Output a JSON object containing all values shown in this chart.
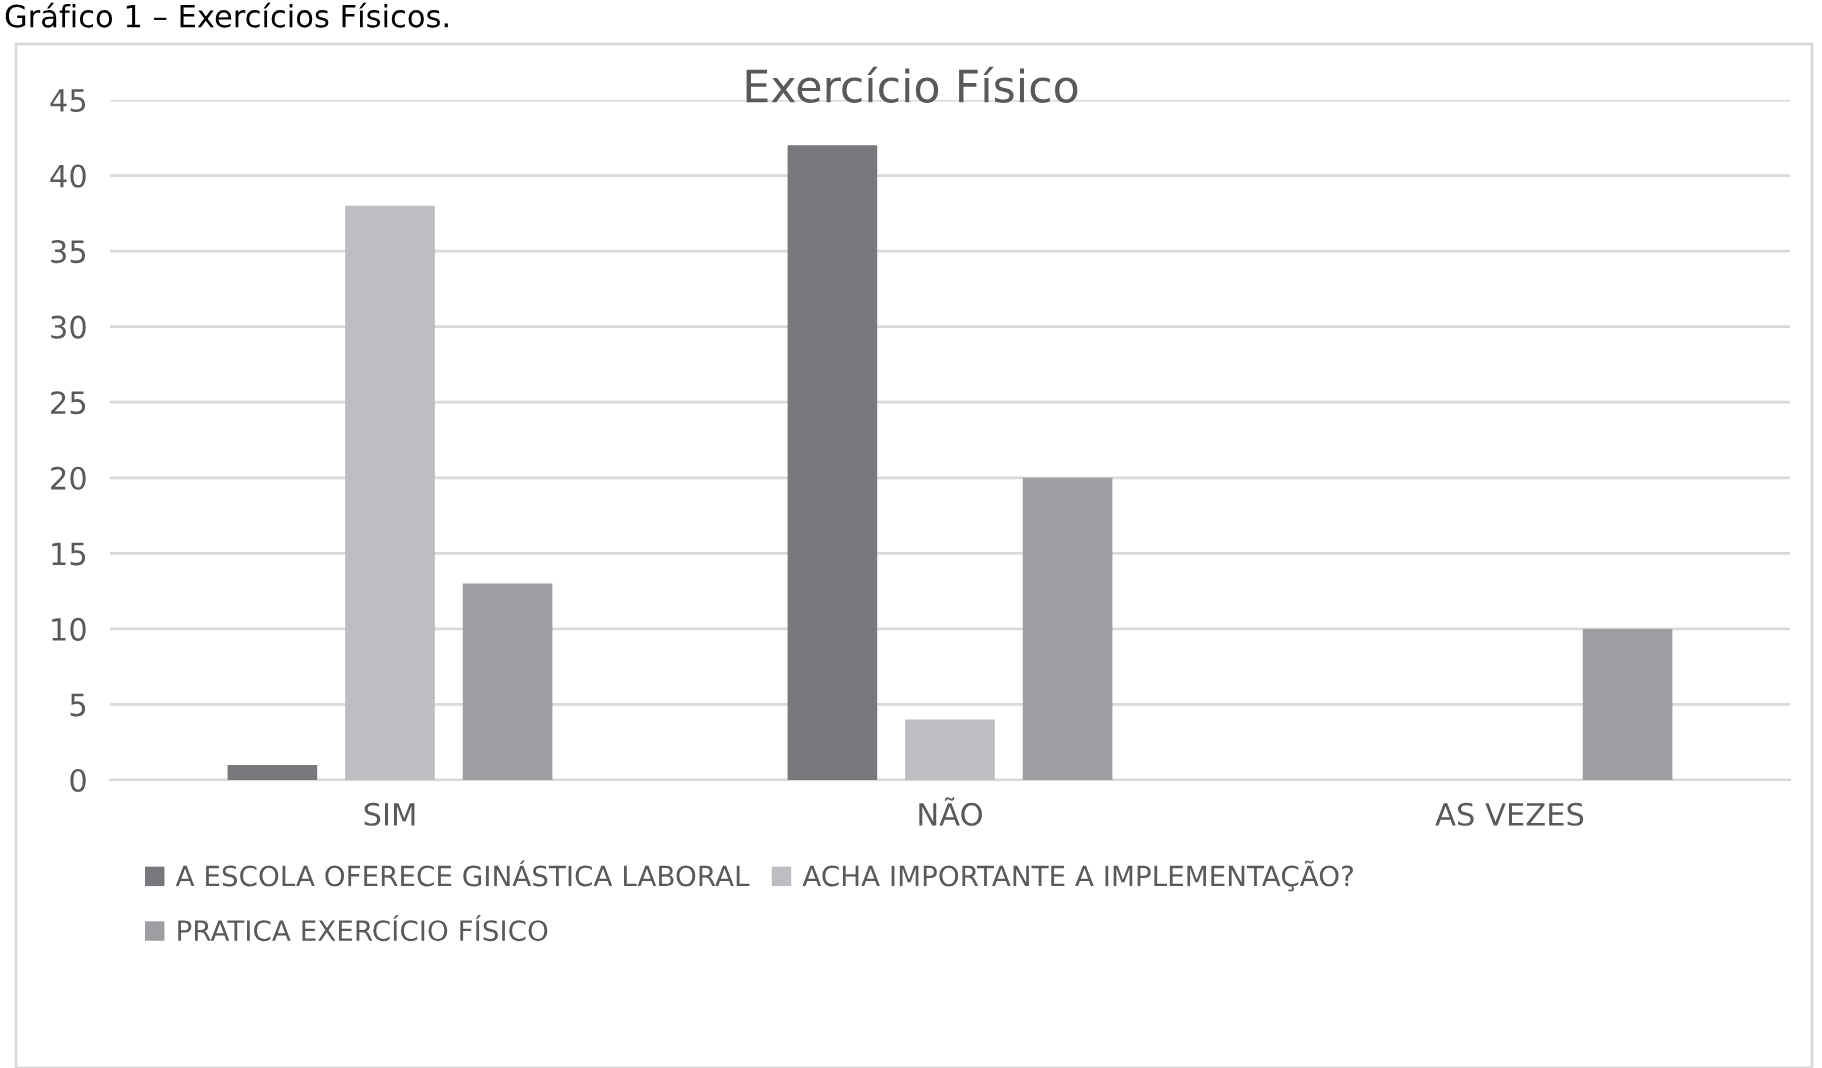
{
  "chart_data": {
    "type": "bar",
    "title": "Exercício Físico",
    "annotations": [
      "Gráfico 1 – Exercícios Físicos."
    ],
    "categories": [
      "SIM",
      "NÃO",
      "AS VEZES"
    ],
    "series": [
      {
        "name": "A ESCOLA OFERECE GINÁSTICA LABORAL",
        "color": "#77787b",
        "values": [
          1,
          42,
          0
        ]
      },
      {
        "name": "ACHA IMPORTANTE A IMPLEMENTAÇÃO?",
        "color": "#bcbdc0",
        "values": [
          38,
          4,
          0
        ]
      },
      {
        "name": "PRATICA EXERCÍCIO FÍSICO",
        "color": "#9d9ea1",
        "values": [
          13,
          20,
          10
        ]
      }
    ],
    "ylim": [
      0,
      45
    ],
    "yticks": [
      0,
      5,
      10,
      15,
      20,
      25,
      30,
      35,
      40,
      45
    ],
    "grid": "y",
    "legend": "bottom"
  }
}
